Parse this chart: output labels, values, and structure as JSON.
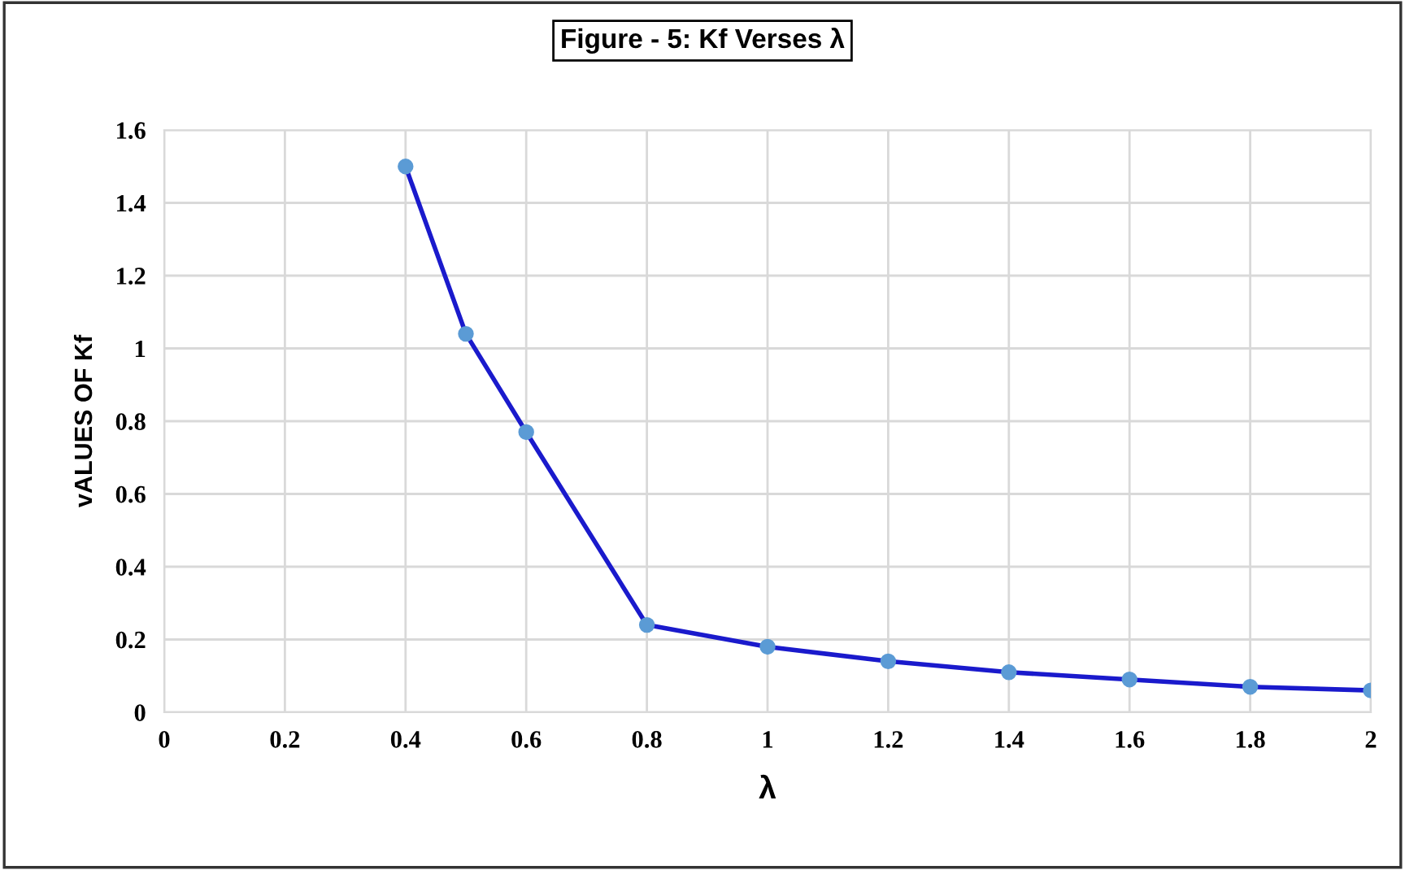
{
  "chart_data": {
    "type": "line",
    "title": "Figure - 5: Kf Verses λ",
    "xlabel": "λ",
    "ylabel": "vALUES OF Kf",
    "x": [
      0.4,
      0.5,
      0.6,
      0.8,
      1.0,
      1.2,
      1.4,
      1.6,
      1.8,
      2.0
    ],
    "series": [
      {
        "color": "#1a1acc",
        "colors": [
          "#5b9bd5",
          "#5b9bd5",
          "#5b9bd5",
          "#5b9bd5",
          "#5b9bd5",
          "#5b9bd5",
          "#5b9bd5",
          "#5b9bd5",
          "#5b9bd5",
          "#5b9bd5"
        ],
        "values": [
          1.5,
          1.04,
          0.77,
          0.24,
          0.18,
          0.14,
          0.11,
          0.09,
          0.07,
          0.06
        ]
      }
    ],
    "xlim": [
      0,
      2
    ],
    "xticks": [
      0,
      0.2,
      0.4,
      0.6,
      0.8,
      1,
      1.2,
      1.4,
      1.6,
      1.8,
      2
    ],
    "ylim": [
      0,
      1.6
    ],
    "yticks": [
      0,
      0.2,
      0.4,
      0.6,
      0.8,
      1,
      1.2,
      1.4,
      1.6
    ],
    "grid": true,
    "marker": "circle",
    "line_style": "solid"
  }
}
